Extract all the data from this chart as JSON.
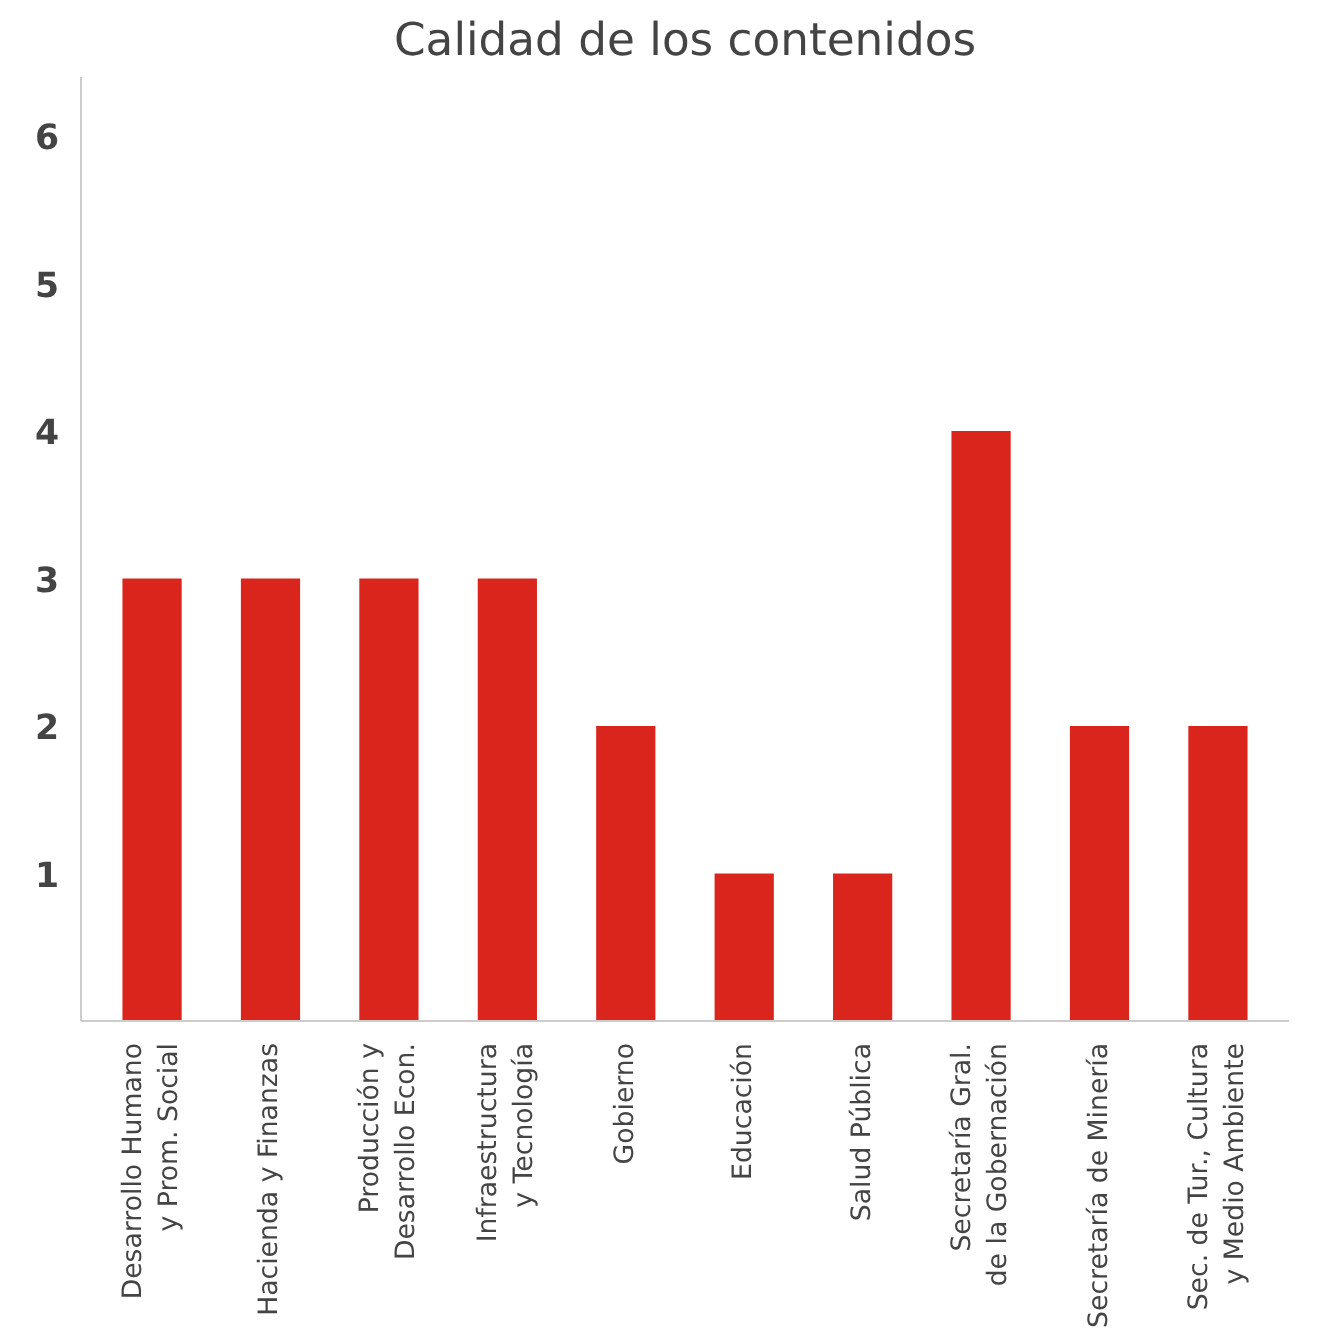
{
  "chart_data": {
    "type": "bar",
    "title": "Calidad de los contenidos",
    "categories": [
      "Desarrollo Humano\ny Prom. Social",
      "Hacienda y Finanzas",
      "Producción y\nDesarrollo Econ.",
      "Infraestructura\ny Tecnología",
      "Gobierno",
      "Educación",
      "Salud Pública",
      "Secretaría Gral.\nde la Gobernación",
      "Secretaría de Minería",
      "Sec. de Tur., Cultura\ny Medio Ambiente"
    ],
    "values": [
      3,
      3,
      3,
      3,
      2,
      1,
      1,
      4,
      2,
      2
    ],
    "color": "#d9251c",
    "ylim": [
      0,
      6.4
    ],
    "yticks": [
      1,
      2,
      3,
      4,
      5,
      6
    ],
    "grid": false
  }
}
